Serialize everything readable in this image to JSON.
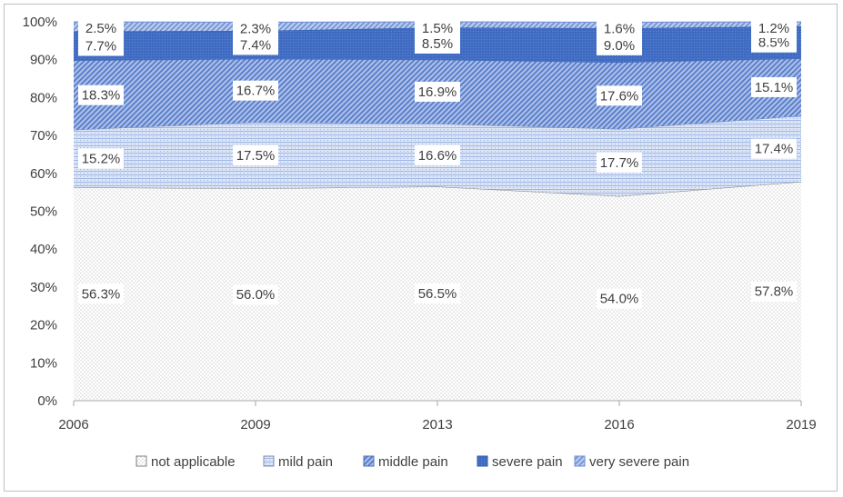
{
  "chart_data": {
    "type": "area",
    "stacked": true,
    "categories": [
      "2006",
      "2009",
      "2013",
      "2016",
      "2019"
    ],
    "ylim": [
      0,
      100
    ],
    "yticks": [
      "0%",
      "10%",
      "20%",
      "30%",
      "40%",
      "50%",
      "60%",
      "70%",
      "80%",
      "90%",
      "100%"
    ],
    "ytick_values": [
      0,
      10,
      20,
      30,
      40,
      50,
      60,
      70,
      80,
      90,
      100
    ],
    "legend_position": "bottom",
    "series": [
      {
        "name": "not applicable",
        "values": [
          56.3,
          56.0,
          56.5,
          54.0,
          57.8
        ],
        "labels": [
          "56.3%",
          "56.0%",
          "56.5%",
          "54.0%",
          "57.8%"
        ],
        "color": "#f2f2f2"
      },
      {
        "name": "mild pain",
        "values": [
          15.2,
          17.5,
          16.6,
          17.7,
          17.4
        ],
        "labels": [
          "15.2%",
          "17.5%",
          "16.6%",
          "17.7%",
          "17.4%"
        ],
        "color": "#c5d3ef"
      },
      {
        "name": "middle pain",
        "values": [
          18.3,
          16.7,
          16.9,
          17.6,
          15.1
        ],
        "labels": [
          "18.3%",
          "16.7%",
          "16.9%",
          "17.6%",
          "15.1%"
        ],
        "color": "#7f9fdc"
      },
      {
        "name": "severe pain",
        "values": [
          7.7,
          7.4,
          8.5,
          9.0,
          8.5
        ],
        "labels": [
          "7.7%",
          "7.4%",
          "8.5%",
          "9.0%",
          "8.5%"
        ],
        "color": "#4472c4"
      },
      {
        "name": "very severe pain",
        "values": [
          2.5,
          2.3,
          1.5,
          1.6,
          1.2
        ],
        "labels": [
          "2.5%",
          "2.3%",
          "1.5%",
          "1.6%",
          "1.2%"
        ],
        "color": "#8eaadb"
      }
    ]
  }
}
